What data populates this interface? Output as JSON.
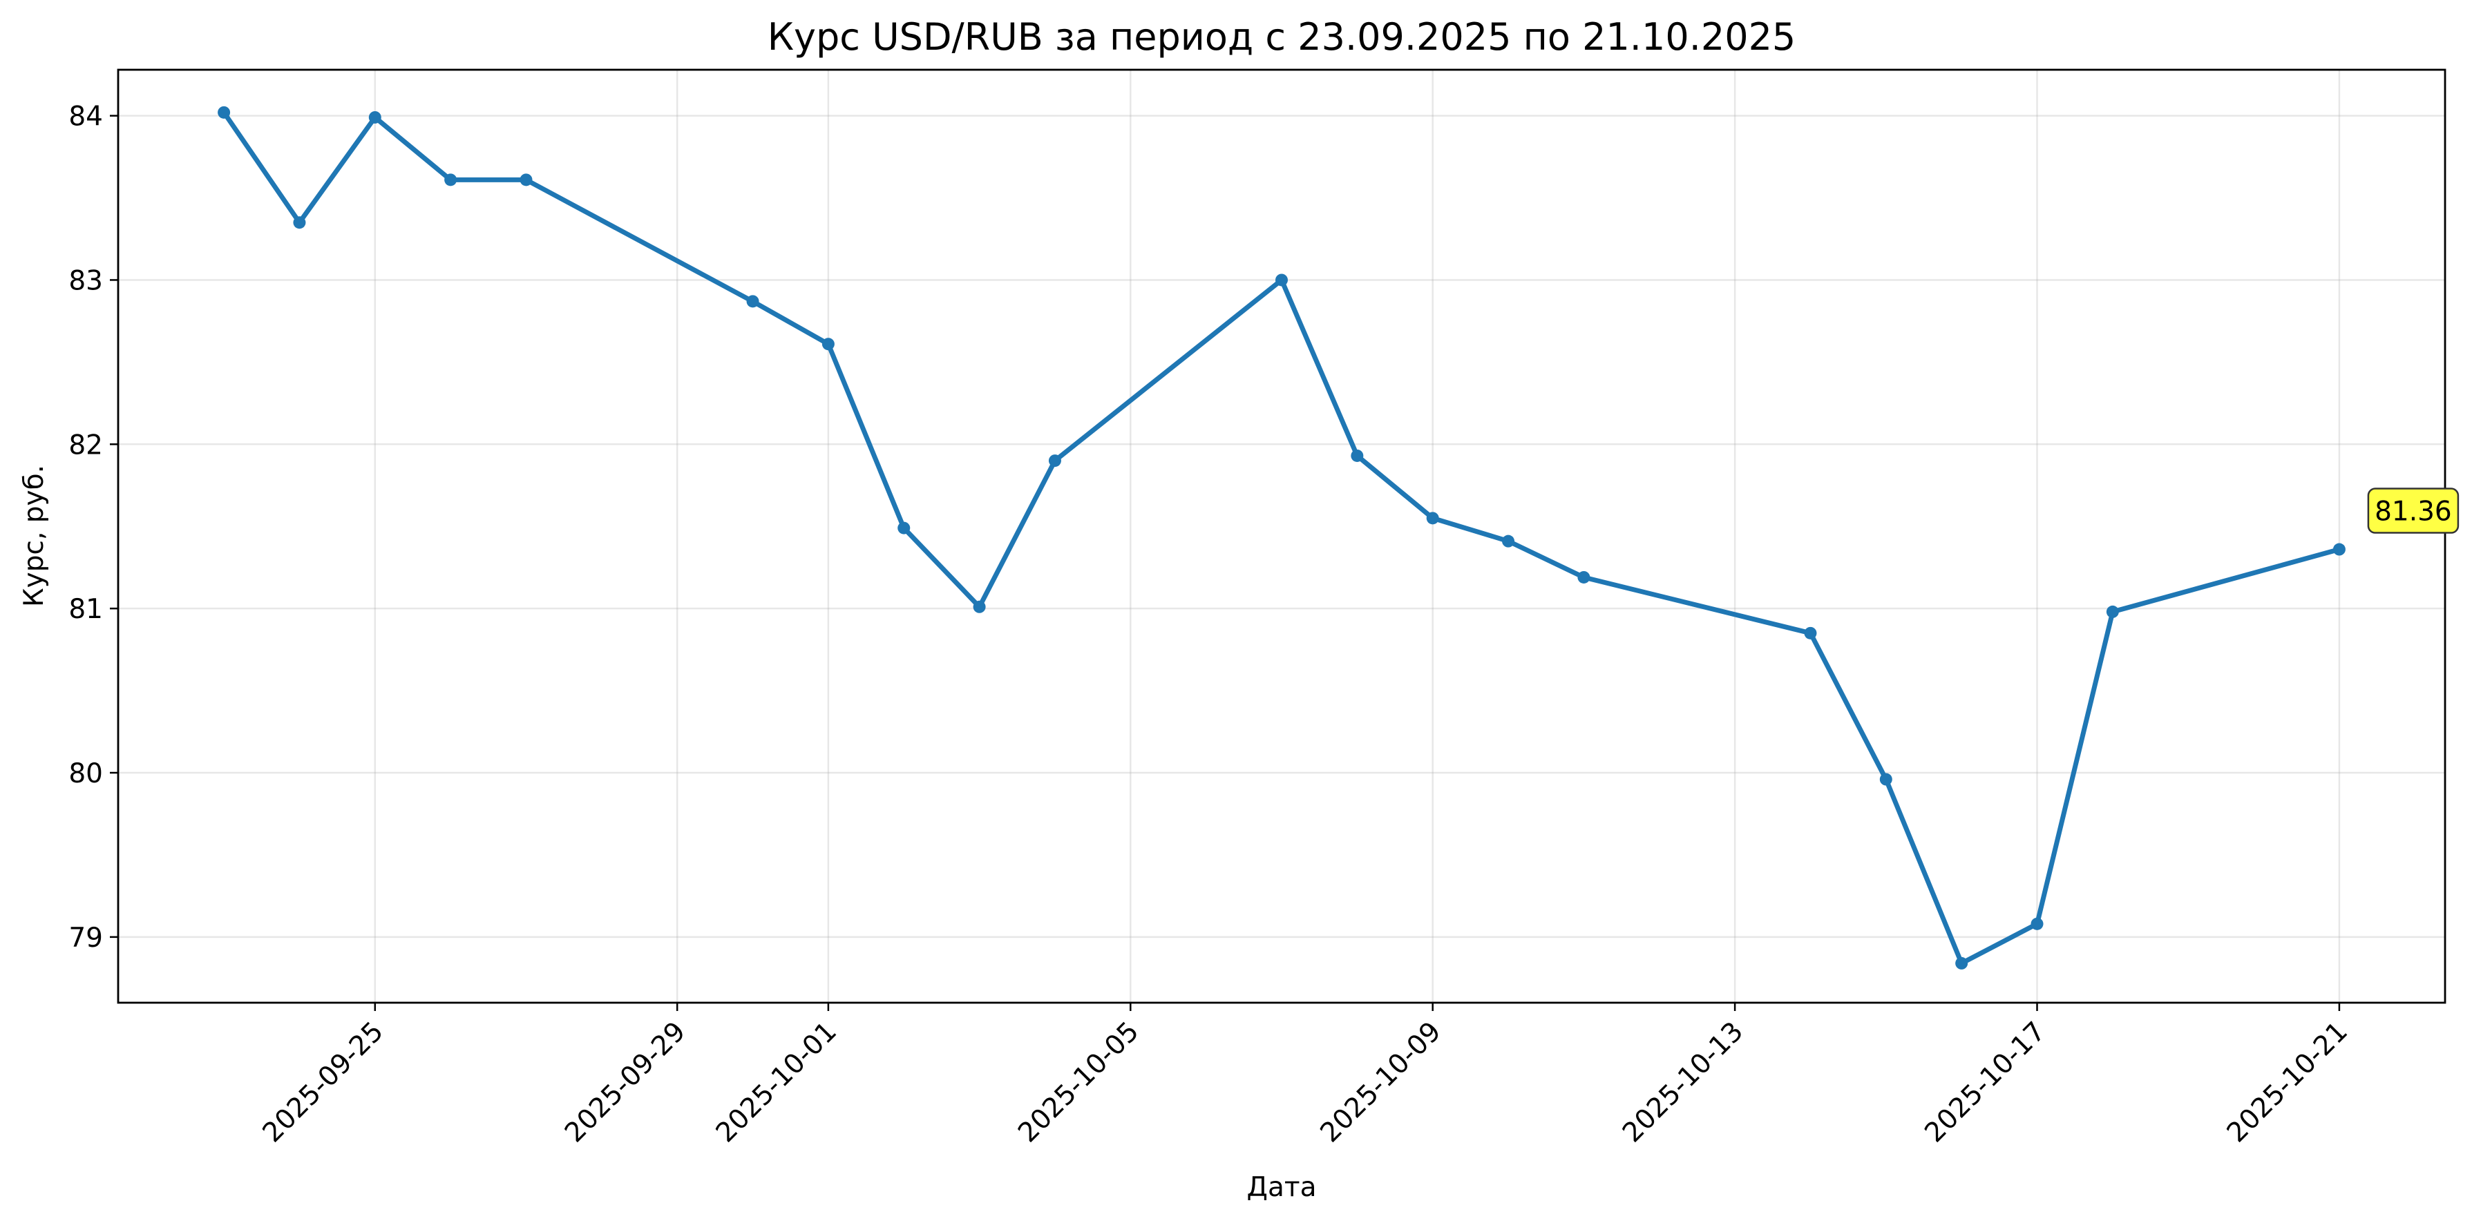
{
  "chart_data": {
    "type": "line",
    "title": "Курс USD/RUB за период с 23.09.2025 по 21.10.2025",
    "xlabel": "Дата",
    "ylabel": "Курс, руб.",
    "x": [
      "2025-09-23",
      "2025-09-24",
      "2025-09-25",
      "2025-09-26",
      "2025-09-27",
      "2025-09-30",
      "2025-10-01",
      "2025-10-02",
      "2025-10-03",
      "2025-10-04",
      "2025-10-07",
      "2025-10-08",
      "2025-10-09",
      "2025-10-10",
      "2025-10-11",
      "2025-10-14",
      "2025-10-15",
      "2025-10-16",
      "2025-10-17",
      "2025-10-18",
      "2025-10-21"
    ],
    "series": [
      {
        "values": [
          84.02,
          83.35,
          83.99,
          83.61,
          83.61,
          82.87,
          82.61,
          81.49,
          81.01,
          81.9,
          83.0,
          81.93,
          81.55,
          81.41,
          81.19,
          80.85,
          79.96,
          78.84,
          79.08,
          80.98,
          81.36
        ],
        "color": "#1f77b4"
      }
    ],
    "x_ticks": [
      "2025-09-25",
      "2025-09-29",
      "2025-10-01",
      "2025-10-05",
      "2025-10-09",
      "2025-10-13",
      "2025-10-17",
      "2025-10-21"
    ],
    "y_ticks": [
      79,
      80,
      81,
      82,
      83,
      84
    ],
    "xlim": [
      "2025-09-21.6",
      "2025-10-22.4"
    ],
    "ylim": [
      78.6,
      84.28
    ],
    "grid": true,
    "annotation": {
      "text": "81.36",
      "x": "2025-10-21",
      "y": 81.36,
      "box_color": "#ffff44"
    }
  }
}
